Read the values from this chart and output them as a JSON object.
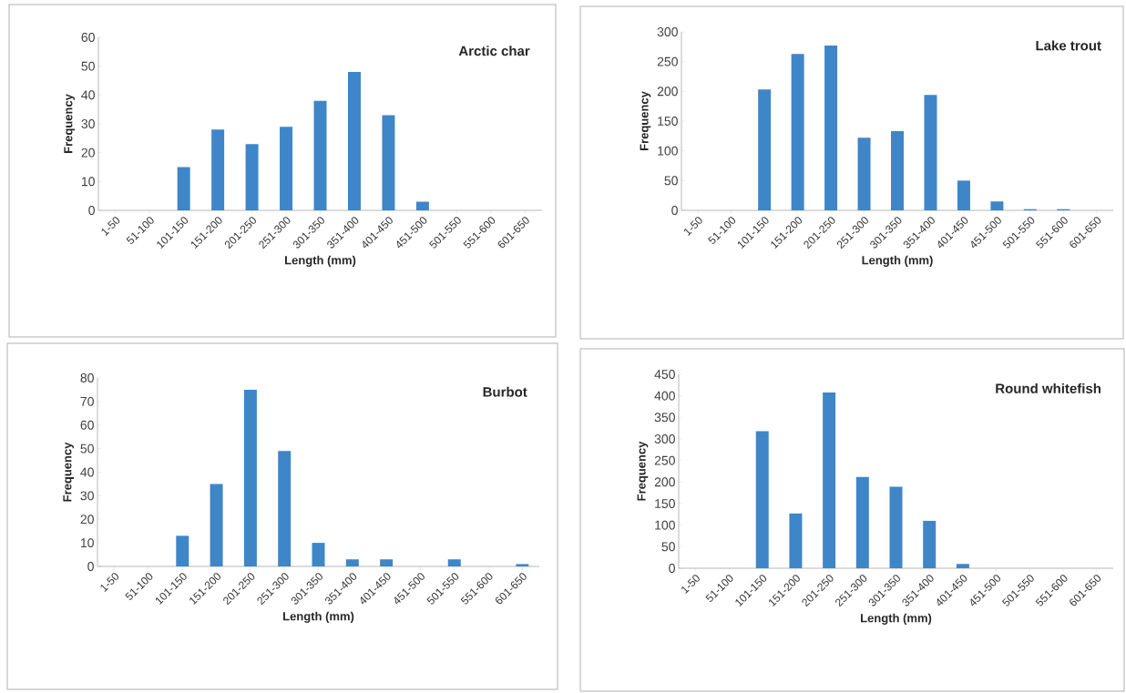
{
  "chart_data": [
    {
      "type": "bar",
      "title": "Arctic char",
      "xlabel": "Length (mm)",
      "ylabel": "Frequency",
      "categories": [
        "1-50",
        "51-100",
        "101-150",
        "151-200",
        "201-250",
        "251-300",
        "301-350",
        "351-400",
        "401-450",
        "451-500",
        "501-550",
        "551-600",
        "601-650"
      ],
      "values": [
        0,
        0,
        15,
        28,
        23,
        29,
        38,
        48,
        33,
        3,
        0,
        0,
        0
      ],
      "color": "#3f86c8",
      "ylim": [
        0,
        60
      ],
      "yticks": [
        0,
        10,
        20,
        30,
        40,
        50,
        60
      ]
    },
    {
      "type": "bar",
      "title": "Lake trout",
      "xlabel": "Length (mm)",
      "ylabel": "Frequency",
      "categories": [
        "1-50",
        "51-100",
        "101-150",
        "151-200",
        "201-250",
        "251-300",
        "301-350",
        "351-400",
        "401-450",
        "451-500",
        "501-550",
        "551-600",
        "601-650"
      ],
      "values": [
        0,
        0,
        203,
        263,
        277,
        122,
        133,
        194,
        50,
        15,
        2,
        2,
        0
      ],
      "color": "#3f86c8",
      "ylim": [
        0,
        300
      ],
      "yticks": [
        0,
        50,
        100,
        150,
        200,
        250,
        300
      ]
    },
    {
      "type": "bar",
      "title": "Burbot",
      "xlabel": "Length (mm)",
      "ylabel": "Frequency",
      "categories": [
        "1-50",
        "51-100",
        "101-150",
        "151-200",
        "201-250",
        "251-300",
        "301-350",
        "351-400",
        "401-450",
        "451-500",
        "501-550",
        "551-600",
        "601-650"
      ],
      "values": [
        0,
        0,
        13,
        35,
        75,
        49,
        10,
        3,
        3,
        0,
        3,
        0,
        1
      ],
      "color": "#3f86c8",
      "ylim": [
        0,
        80
      ],
      "yticks": [
        0,
        10,
        20,
        30,
        40,
        50,
        60,
        70,
        80
      ]
    },
    {
      "type": "bar",
      "title": "Round whitefish",
      "xlabel": "Length (mm)",
      "ylabel": "Frequency",
      "categories": [
        "1-50",
        "51-100",
        "101-150",
        "151-200",
        "201-250",
        "251-300",
        "301-350",
        "351-400",
        "401-450",
        "451-500",
        "501-550",
        "551-600",
        "601-650"
      ],
      "values": [
        0,
        0,
        318,
        127,
        408,
        212,
        189,
        110,
        10,
        0,
        0,
        0,
        0
      ],
      "color": "#3f86c8",
      "ylim": [
        0,
        450
      ],
      "yticks": [
        0,
        50,
        100,
        150,
        200,
        250,
        300,
        350,
        400,
        450
      ]
    }
  ]
}
